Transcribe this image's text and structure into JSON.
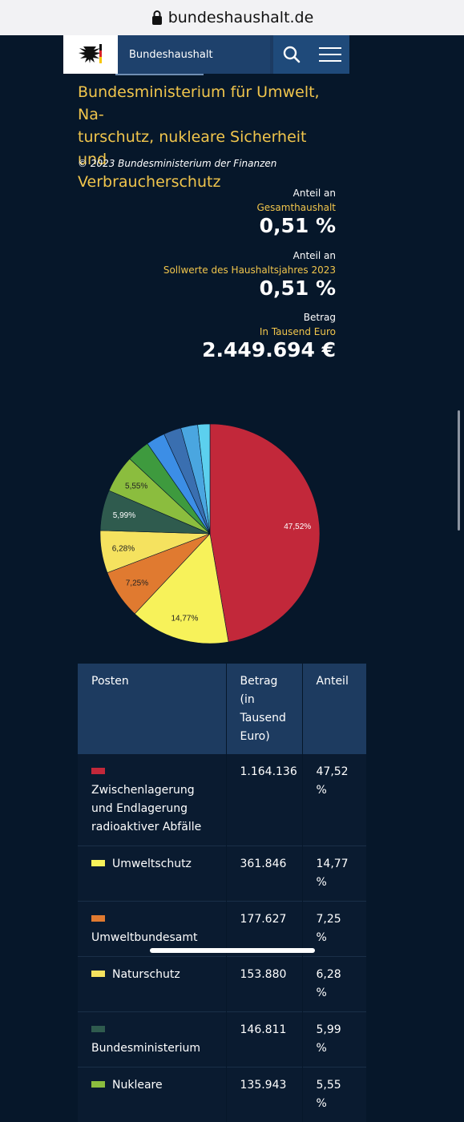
{
  "browser": {
    "url": "bundeshaushalt.de"
  },
  "header": {
    "site_label": "Bundeshaushalt"
  },
  "page": {
    "title": "Bundesministerium für Umwelt, Naturschutz, nukleare Sicherheit und Verbraucherschutz",
    "title_lines": [
      "Bundesministerium für Umwelt, Na-",
      "turschutz, nukleare Sicherheit und",
      "Verbraucherschutz"
    ],
    "copyright": "© 2023 Bundesministerium der Finanzen"
  },
  "stats": [
    {
      "label": "Anteil an",
      "sublabel": "Gesamthaushalt",
      "value": "0,51 %"
    },
    {
      "label": "Anteil an",
      "sublabel": "Sollwerte des Haushaltsjahres 2023",
      "value": "0,51 %"
    },
    {
      "label": "Betrag",
      "sublabel": "In Tausend Euro",
      "value": "2.449.694 €"
    }
  ],
  "colors": {
    "red": "#c2283a",
    "yellow": "#f7f25a",
    "orange": "#e07a30",
    "pale_yellow": "#f5e25f",
    "dark_green": "#2f5b4e",
    "lime": "#8bbd3e",
    "green": "#3e9a3e",
    "blue": "#3c8ee6",
    "mid_blue": "#3a6fb0",
    "light_blue": "#4aa6e0",
    "cyan": "#5cd0ee",
    "accent": "#f0c54c"
  },
  "chart_data": {
    "type": "pie",
    "slices": [
      {
        "label": "47,52%",
        "value": 47.52,
        "color": "#c2283a",
        "label_color": "#ffffff"
      },
      {
        "label": "14,77%",
        "value": 14.77,
        "color": "#f7f25a",
        "label_color": "#222222"
      },
      {
        "label": "7,25%",
        "value": 7.25,
        "color": "#e07a30",
        "label_color": "#222222"
      },
      {
        "label": "6,28%",
        "value": 6.28,
        "color": "#f5e25f",
        "label_color": "#222222"
      },
      {
        "label": "5,99%",
        "value": 5.99,
        "color": "#2f5b4e",
        "label_color": "#ffffff"
      },
      {
        "label": "5,55%",
        "value": 5.55,
        "color": "#8bbd3e",
        "label_color": "#222222"
      },
      {
        "label": "",
        "value": 3.4,
        "color": "#3e9a3e",
        "label_color": "#ffffff"
      },
      {
        "label": "",
        "value": 2.8,
        "color": "#3c8ee6",
        "label_color": "#ffffff"
      },
      {
        "label": "",
        "value": 2.6,
        "color": "#3a6fb0",
        "label_color": "#ffffff"
      },
      {
        "label": "",
        "value": 2.5,
        "color": "#4aa6e0",
        "label_color": "#ffffff"
      },
      {
        "label": "",
        "value": 1.8,
        "color": "#5cd0ee",
        "label_color": "#ffffff"
      }
    ]
  },
  "table": {
    "headers": [
      "Posten",
      "Betrag (in Tausend Euro)",
      "Anteil"
    ],
    "rows": [
      {
        "posten": "Zwischenlagerung und Endlagerung radioaktiver Abfälle",
        "betrag": "1.164.136",
        "anteil": "47,52 %",
        "color": "#c2283a"
      },
      {
        "posten": "Umweltschutz",
        "betrag": "361.846",
        "anteil": "14,77 %",
        "color": "#f7f25a"
      },
      {
        "posten": "Umweltbundesamt",
        "betrag": "177.627",
        "anteil": "7,25 %",
        "color": "#e07a30"
      },
      {
        "posten": "Naturschutz",
        "betrag": "153.880",
        "anteil": "6,28 %",
        "color": "#f5e25f"
      },
      {
        "posten": "Bundesministerium",
        "betrag": "146.811",
        "anteil": "5,99 %",
        "color": "#2f5b4e"
      },
      {
        "posten": "Nukleare",
        "betrag": "135.943",
        "anteil": "5,55 %",
        "color": "#8bbd3e"
      }
    ]
  }
}
